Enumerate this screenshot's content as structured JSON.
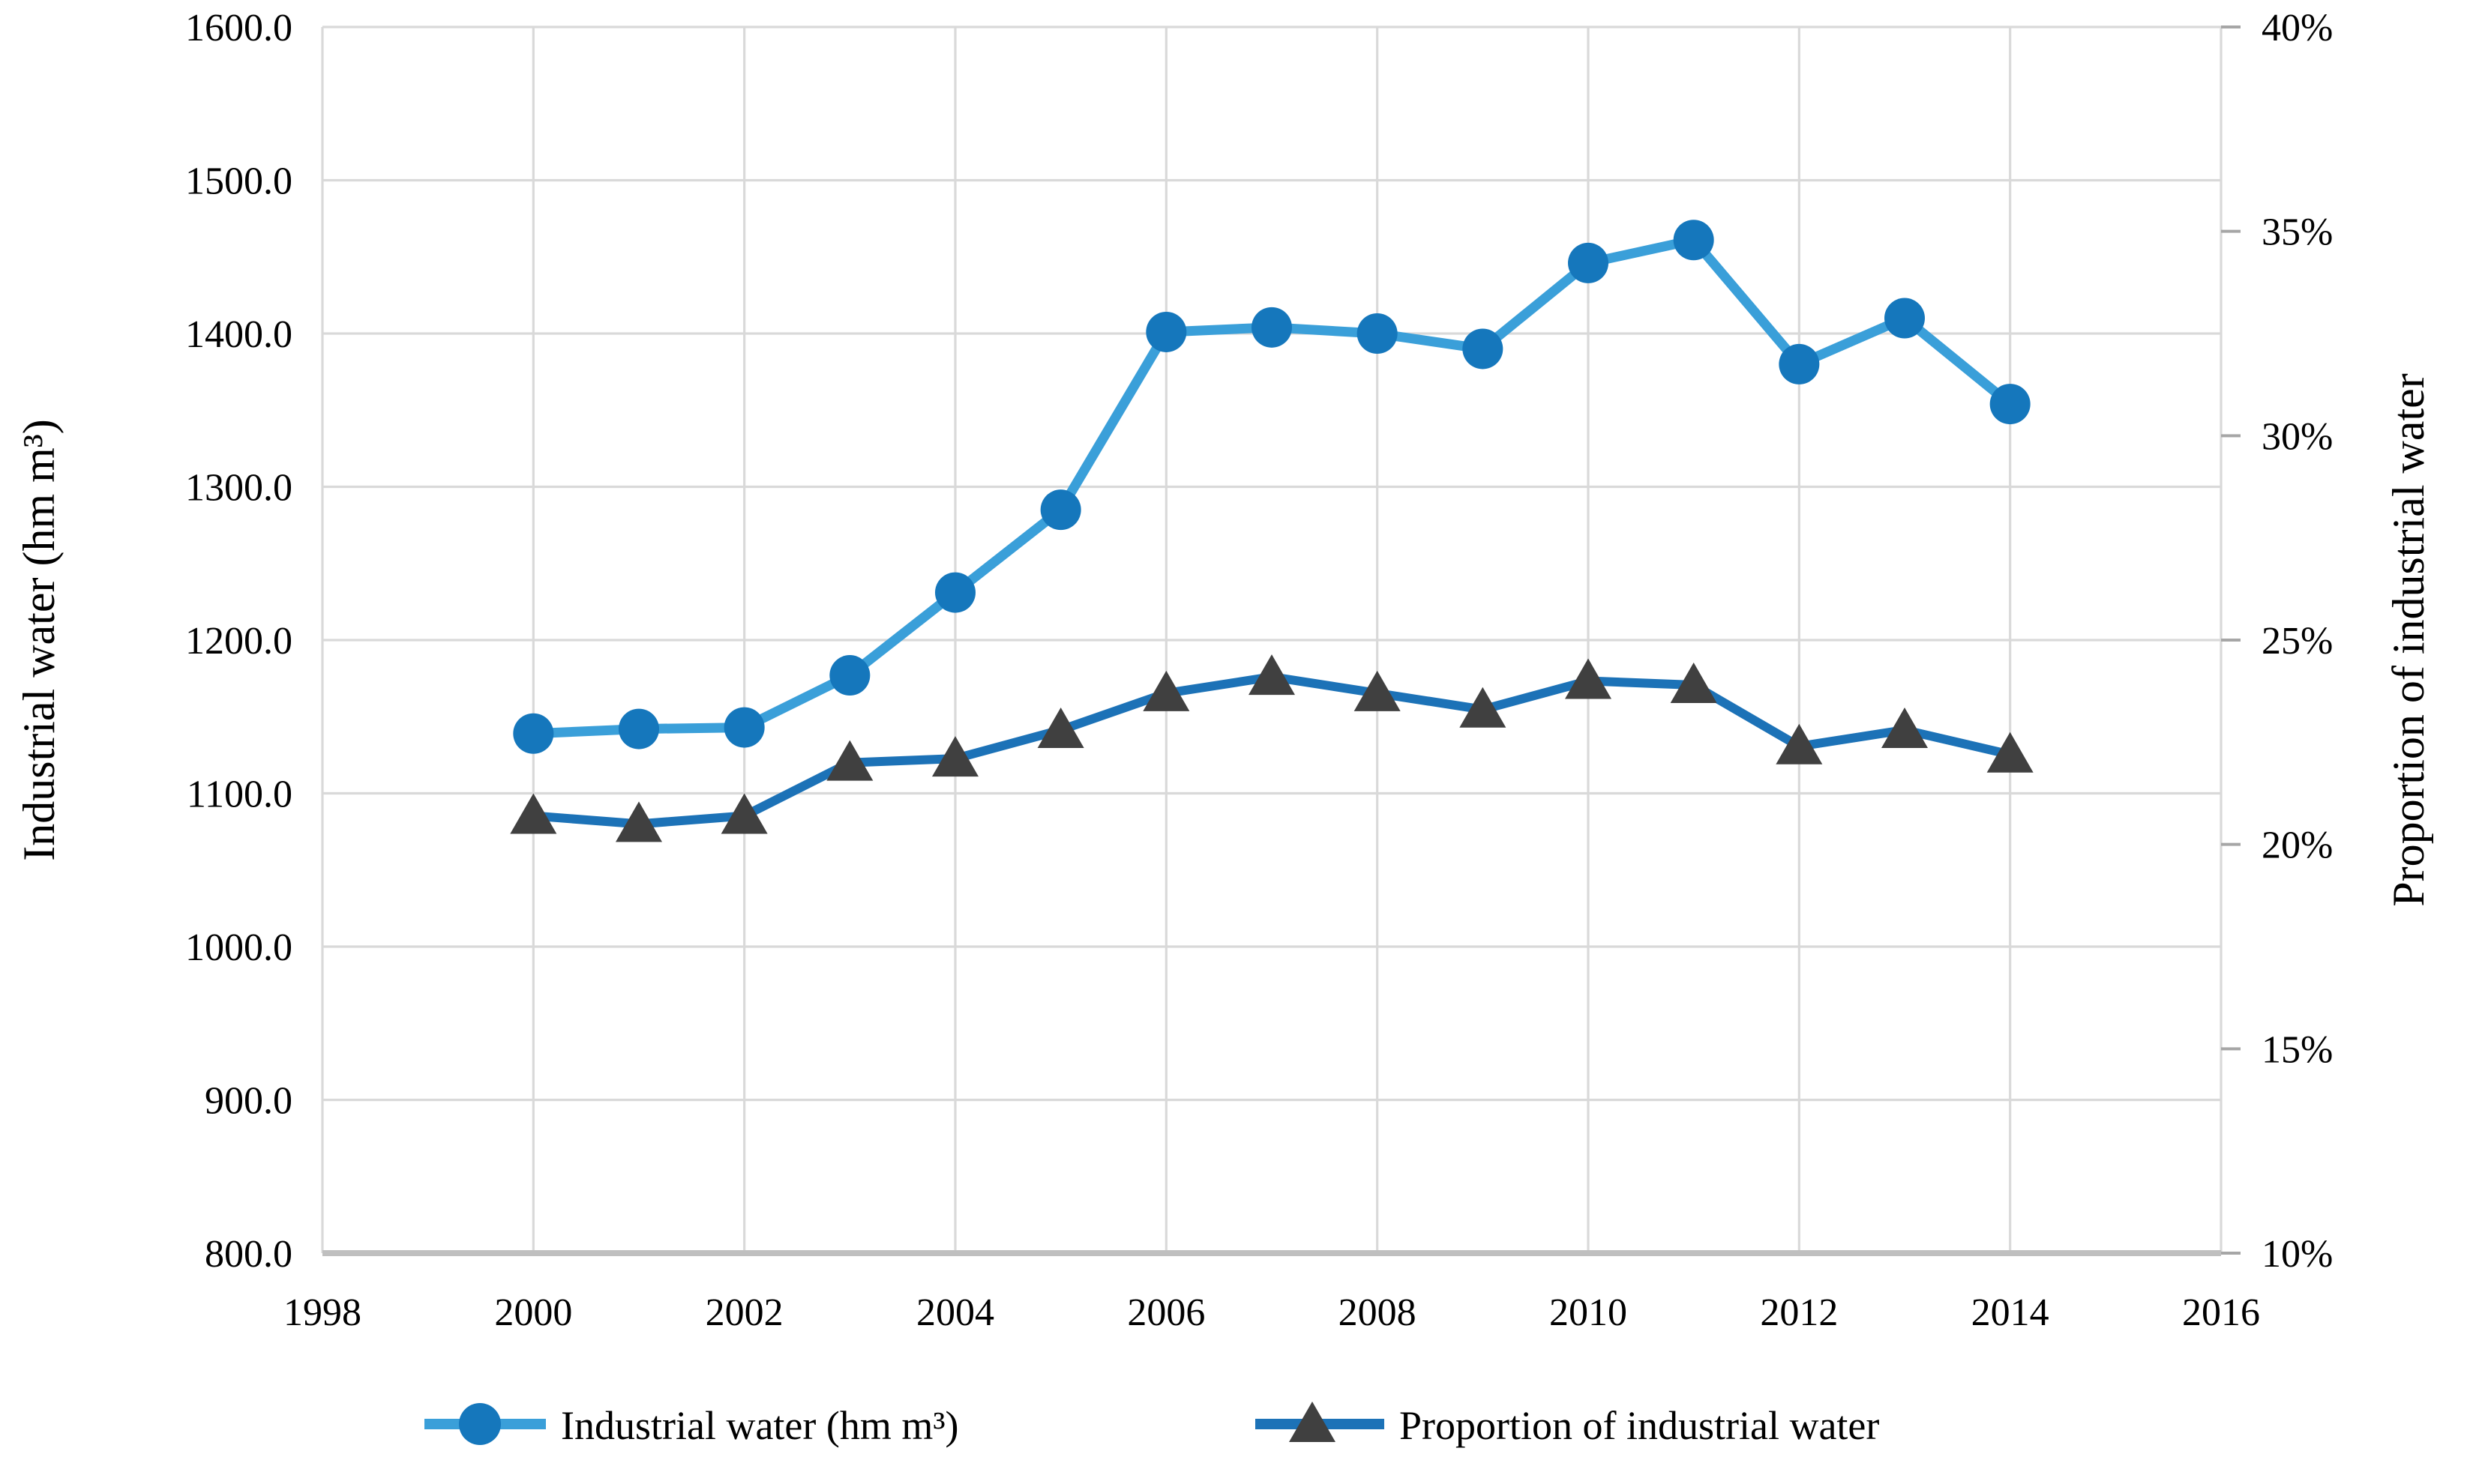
{
  "figure": {
    "background": "#ffffff"
  },
  "chart_data": {
    "type": "line",
    "title": "",
    "x": [
      2000,
      2001,
      2002,
      2003,
      2004,
      2005,
      2006,
      2007,
      2008,
      2009,
      2010,
      2011,
      2012,
      2013,
      2014
    ],
    "series": [
      {
        "name": "Industrial water (hm m³)",
        "axis": "left",
        "marker": "circle",
        "line_color": "#3a9fd9",
        "marker_color": "#1577bc",
        "values": [
          1139,
          1142,
          1143,
          1177,
          1231,
          1285,
          1401,
          1404,
          1400,
          1390,
          1446,
          1461,
          1380,
          1410,
          1354
        ]
      },
      {
        "name": "Proportion of industrial water",
        "axis": "right",
        "marker": "triangle",
        "line_color": "#1c72b7",
        "marker_color": "#404040",
        "values": [
          20.7,
          20.5,
          20.7,
          22.0,
          22.1,
          22.8,
          23.7,
          24.1,
          23.7,
          23.3,
          24.0,
          23.9,
          22.4,
          22.8,
          22.2
        ]
      }
    ],
    "left_axis": {
      "label": "Industrial water (hm m³)",
      "min": 800,
      "max": 1600,
      "ticks": [
        "1600.0",
        "1500.0",
        "1400.0",
        "1300.0",
        "1200.0",
        "1100.0",
        "1000.0",
        "900.0",
        "800.0"
      ]
    },
    "right_axis": {
      "label": "Proportion of industrial water",
      "min": 10,
      "max": 40,
      "ticks": [
        "40%",
        "35%",
        "30%",
        "25%",
        "20%",
        "15%",
        "10%"
      ]
    },
    "x_axis": {
      "label": "",
      "min": 1998,
      "max": 2016,
      "ticks": [
        "1998",
        "2000",
        "2002",
        "2004",
        "2006",
        "2008",
        "2010",
        "2012",
        "2014",
        "2016"
      ]
    },
    "legend": [
      {
        "label": "Industrial water (hm m³)"
      },
      {
        "label": "Proportion of industrial water"
      }
    ],
    "grid": true,
    "legend_position": "bottom",
    "colors": {
      "gridline": "#d9d9d9",
      "axis_line": "#bfbfbf",
      "tick_mark": "#a6a6a6",
      "text": "#000000"
    }
  }
}
